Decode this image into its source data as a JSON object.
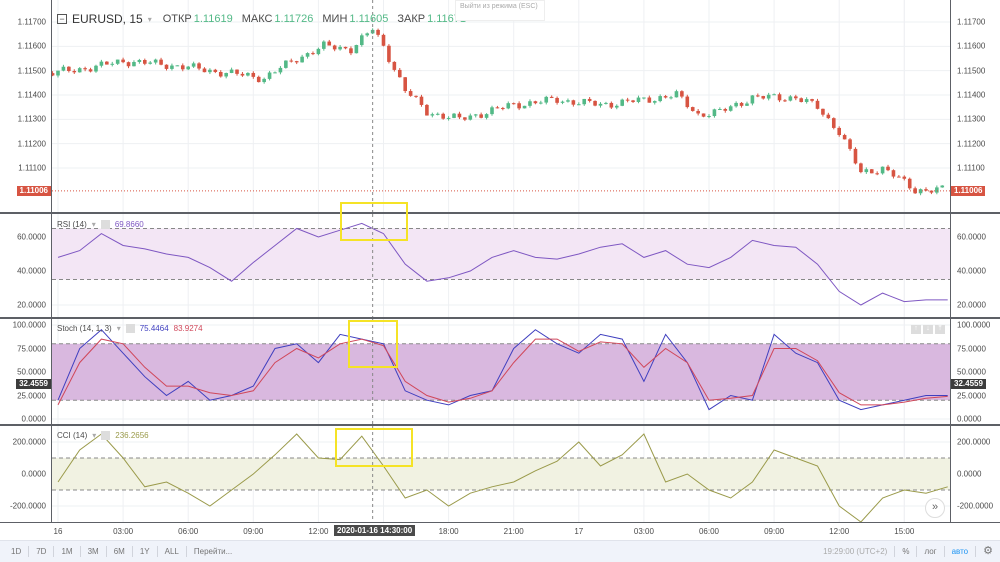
{
  "symbol": {
    "name": "EURUSD, 15",
    "open_label": "ОТКР",
    "open": "1.11619",
    "high_label": "МАКС",
    "high": "1.11726",
    "low_label": "МИН",
    "low": "1.11605",
    "close_label": "ЗАКР",
    "close": "1.11671"
  },
  "tooltip": "Выйти из режима (ESC)",
  "colors": {
    "up": "#53b987",
    "down": "#d75442",
    "rsi": "#7e57c2",
    "stoch_k": "#3f3fbf",
    "stoch_d": "#d0475a",
    "cci": "#9a9a4a",
    "rsi_band": "#f3e6f5",
    "stoch_band": "#d9b8df",
    "cci_band": "#f1f2e2",
    "badge_price": "#d75442",
    "badge_stoch": "#3c3c3c",
    "accent": "#2196f3"
  },
  "price_axis": {
    "ticks": [
      "1.11700",
      "1.11600",
      "1.11500",
      "1.11400",
      "1.11300",
      "1.11200",
      "1.11100"
    ],
    "current": "1.11006"
  },
  "price_path": [
    [
      "2020-01-15 23:45",
      1.1149
    ],
    [
      "2020-01-16 02:00",
      1.1152
    ],
    [
      "2020-01-16 03:00",
      1.1154
    ],
    [
      "2020-01-16 05:30",
      1.1152
    ],
    [
      "2020-01-16 07:00",
      1.115
    ],
    [
      "2020-01-16 09:30",
      1.1147
    ],
    [
      "2020-01-16 11:00",
      1.1155
    ],
    [
      "2020-01-16 12:15",
      1.116
    ],
    [
      "2020-01-16 13:30",
      1.1159
    ],
    [
      "2020-01-16 14:30",
      1.1167
    ],
    [
      "2020-01-16 15:00",
      1.116
    ],
    [
      "2020-01-16 16:00",
      1.1142
    ],
    [
      "2020-01-16 17:00",
      1.1133
    ],
    [
      "2020-01-16 18:30",
      1.113
    ],
    [
      "2020-01-16 21:00",
      1.1136
    ],
    [
      "2020-01-16 23:00",
      1.1138
    ],
    [
      "2020-01-17 01:00",
      1.1136
    ],
    [
      "2020-01-17 03:00",
      1.1138
    ],
    [
      "2020-01-17 04:30",
      1.114
    ],
    [
      "2020-01-17 05:30",
      1.1132
    ],
    [
      "2020-01-17 06:30",
      1.1133
    ],
    [
      "2020-01-17 08:00",
      1.1139
    ],
    [
      "2020-01-17 10:00",
      1.1139
    ],
    [
      "2020-01-17 11:00",
      1.1135
    ],
    [
      "2020-01-17 12:00",
      1.1125
    ],
    [
      "2020-01-17 13:00",
      1.1108
    ],
    [
      "2020-01-17 14:00",
      1.111
    ],
    [
      "2020-01-17 15:30",
      1.1101
    ],
    [
      "2020-01-17 16:45",
      1.1101
    ]
  ],
  "indicator_x": {
    "start": "2020-01-16 00:00",
    "step_minutes": 60
  },
  "rsi": {
    "label": "RSI (14)",
    "value": "69.8660",
    "ticks": [
      "60.0000",
      "40.0000",
      "20.0000"
    ],
    "upper": 65,
    "lower": 35,
    "values": [
      48,
      52,
      62,
      55,
      53,
      50,
      48,
      42,
      34,
      45,
      55,
      65,
      60,
      64,
      68,
      62,
      44,
      34,
      36,
      40,
      48,
      52,
      48,
      47,
      50,
      54,
      56,
      48,
      52,
      44,
      42,
      48,
      58,
      55,
      54,
      44,
      28,
      20,
      27,
      22,
      23,
      23
    ]
  },
  "stoch": {
    "label": "Stoch (14, 1, 3)",
    "k_value": "75.4464",
    "d_value": "83.9274",
    "ticks": [
      "100.0000",
      "75.0000",
      "50.0000",
      "25.0000",
      "0.0000"
    ],
    "current": "32.4559",
    "upper": 80,
    "lower": 20,
    "k": [
      20,
      75,
      95,
      70,
      45,
      25,
      40,
      20,
      25,
      35,
      75,
      80,
      60,
      90,
      85,
      80,
      30,
      20,
      15,
      25,
      30,
      75,
      95,
      80,
      70,
      90,
      85,
      40,
      90,
      60,
      10,
      25,
      20,
      90,
      70,
      60,
      20,
      10,
      15,
      20,
      25,
      25
    ],
    "d": [
      15,
      60,
      85,
      80,
      55,
      35,
      35,
      28,
      25,
      30,
      60,
      75,
      65,
      80,
      85,
      78,
      40,
      25,
      18,
      22,
      30,
      60,
      85,
      85,
      72,
      82,
      80,
      55,
      75,
      60,
      20,
      22,
      25,
      75,
      75,
      62,
      28,
      15,
      15,
      18,
      22,
      24
    ]
  },
  "cci": {
    "label": "CCI (14)",
    "value": "236.2656",
    "ticks": [
      "200.0000",
      "0.0000",
      "-200.0000"
    ],
    "upper": 100,
    "lower": -100,
    "values": [
      -50,
      150,
      250,
      100,
      -80,
      -50,
      -120,
      -200,
      -100,
      0,
      120,
      250,
      100,
      90,
      236,
      50,
      -150,
      -100,
      -200,
      -120,
      -80,
      -50,
      20,
      80,
      200,
      50,
      120,
      250,
      -50,
      0,
      -100,
      -150,
      -50,
      150,
      100,
      50,
      -200,
      -300,
      -150,
      -100,
      -120,
      -80
    ]
  },
  "time_axis": {
    "labels": [
      [
        "2020-01-16 00:00",
        "16"
      ],
      [
        "2020-01-16 03:00",
        "03:00"
      ],
      [
        "2020-01-16 06:00",
        "06:00"
      ],
      [
        "2020-01-16 09:00",
        "09:00"
      ],
      [
        "2020-01-16 12:00",
        "12:00"
      ],
      [
        "2020-01-16 18:00",
        "18:00"
      ],
      [
        "2020-01-16 21:00",
        "21:00"
      ],
      [
        "2020-01-17 00:00",
        "17"
      ],
      [
        "2020-01-17 03:00",
        "03:00"
      ],
      [
        "2020-01-17 06:00",
        "06:00"
      ],
      [
        "2020-01-17 09:00",
        "09:00"
      ],
      [
        "2020-01-17 12:00",
        "12:00"
      ],
      [
        "2020-01-17 15:00",
        "15:00"
      ]
    ],
    "crosshair": "2020-01-16 14:30:00"
  },
  "bottom": {
    "ranges": [
      "1D",
      "7D",
      "1M",
      "3M",
      "6M",
      "1Y",
      "ALL"
    ],
    "goto": "Перейти...",
    "clock": "19:29:00 (UTC+2)",
    "percent": "%",
    "log": "лог",
    "auto": "авто"
  },
  "icons": {
    "scroll_button": "double-chevron-right-icon",
    "settings": "gear-icon",
    "collapse": "minus-square-icon"
  }
}
